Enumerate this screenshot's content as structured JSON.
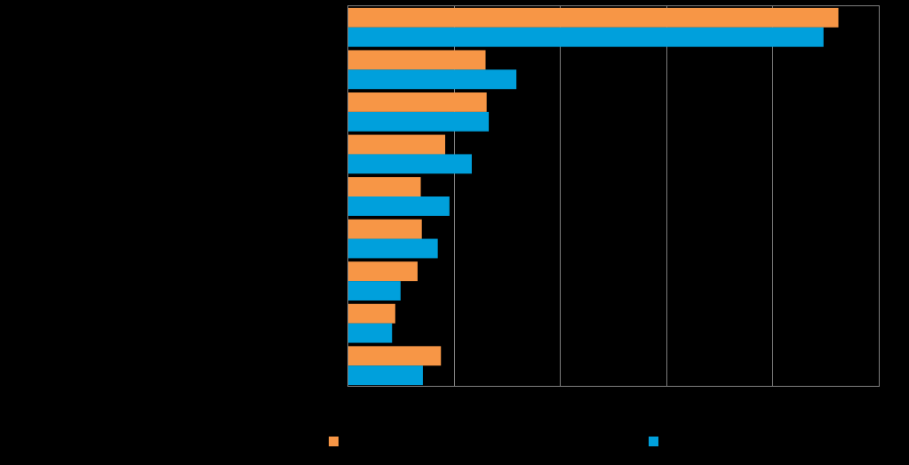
{
  "chart_data": {
    "type": "bar",
    "orientation": "horizontal",
    "title": "",
    "xlabel": "",
    "ylabel": "",
    "categories": [
      "",
      "",
      "",
      "",
      "",
      "",
      "",
      "",
      ""
    ],
    "xlim": [
      0,
      5
    ],
    "grid": "vertical",
    "legend_position": "bottom",
    "series": [
      {
        "name": "",
        "color": "#F79646",
        "values": [
          4.62,
          1.3,
          1.31,
          0.92,
          0.69,
          0.7,
          0.66,
          0.45,
          0.88
        ]
      },
      {
        "name": "",
        "color": "#00A0DC",
        "values": [
          4.48,
          1.59,
          1.33,
          1.17,
          0.96,
          0.85,
          0.5,
          0.42,
          0.71
        ]
      }
    ]
  }
}
